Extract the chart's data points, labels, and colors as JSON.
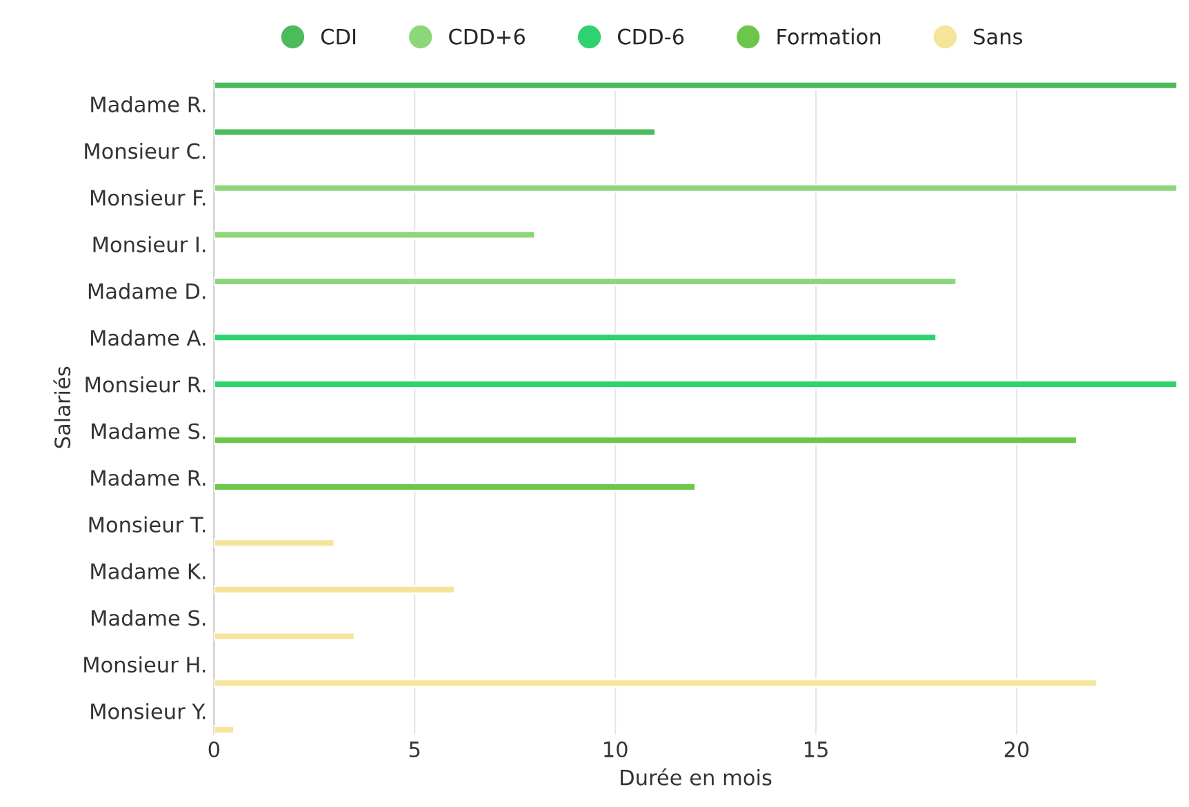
{
  "chart_data": {
    "type": "bar",
    "orientation": "horizontal",
    "xlabel": "Durée en mois",
    "ylabel": "Salariés",
    "categories": [
      "Madame R.",
      "Monsieur C.",
      "Monsieur F.",
      "Monsieur I.",
      "Madame D.",
      "Madame A.",
      "Monsieur R.",
      "Madame S.",
      "Madame R.",
      "Monsieur T.",
      "Madame K.",
      "Madame S.",
      "Monsieur H.",
      "Monsieur Y."
    ],
    "series": [
      {
        "name": "CDI",
        "color": "#4cbb5c",
        "values": [
          24,
          11,
          null,
          null,
          null,
          null,
          null,
          null,
          null,
          null,
          null,
          null,
          null,
          null
        ]
      },
      {
        "name": "CDD+6",
        "color": "#8ed67a",
        "values": [
          null,
          null,
          24,
          8,
          18.5,
          null,
          null,
          null,
          null,
          null,
          null,
          null,
          null,
          null
        ]
      },
      {
        "name": "CDD-6",
        "color": "#2ed36f",
        "values": [
          null,
          null,
          null,
          null,
          null,
          18,
          24,
          null,
          null,
          null,
          null,
          null,
          null,
          null
        ]
      },
      {
        "name": "Formation",
        "color": "#6cc64a",
        "values": [
          null,
          null,
          null,
          null,
          null,
          null,
          null,
          21.5,
          12,
          null,
          null,
          null,
          null,
          null
        ]
      },
      {
        "name": "Sans",
        "color": "#f6e49a",
        "values": [
          null,
          null,
          null,
          null,
          null,
          null,
          null,
          null,
          null,
          3,
          6,
          3.5,
          22,
          0.5
        ]
      }
    ],
    "xlim": [
      0,
      24
    ],
    "xticks": [
      0,
      5,
      10,
      15,
      20
    ],
    "grid": "x",
    "legend": "top"
  }
}
